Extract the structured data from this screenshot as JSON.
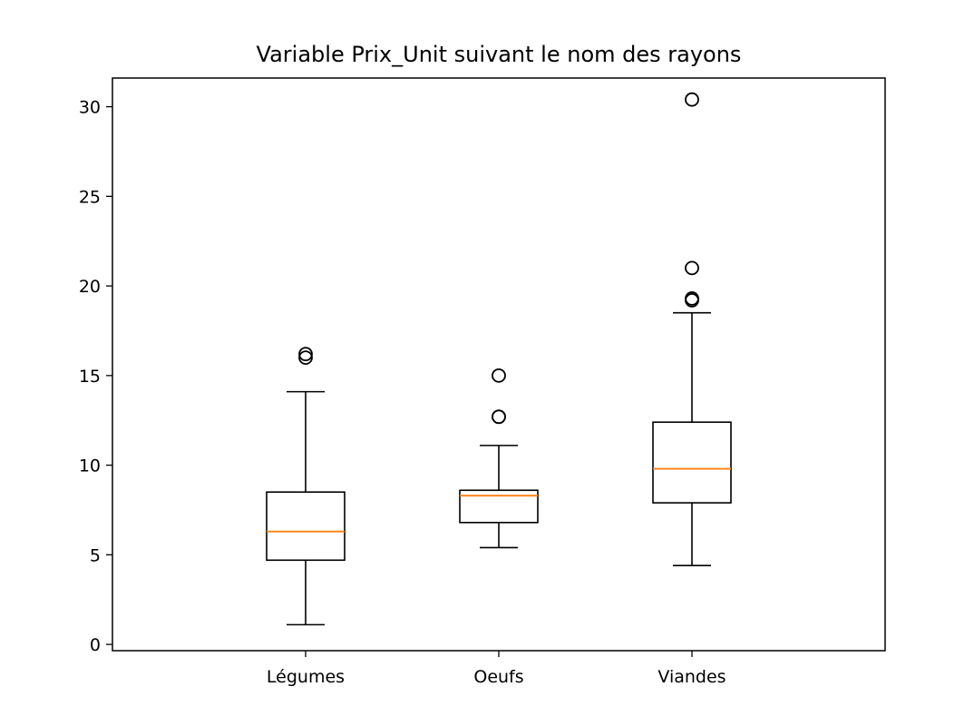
{
  "chart_data": {
    "type": "boxplot",
    "title": "Variable Prix_Unit suivant le nom des rayons",
    "xlabel": "",
    "ylabel": "",
    "categories": [
      "Légumes",
      "Oeufs",
      "Viandes"
    ],
    "boxes": [
      {
        "category": "Légumes",
        "whisker_low": 1.1,
        "q1": 4.7,
        "median": 6.3,
        "q3": 8.5,
        "whisker_high": 14.1,
        "outliers": [
          16.0,
          16.2
        ]
      },
      {
        "category": "Oeufs",
        "whisker_low": 5.4,
        "q1": 6.8,
        "median": 8.3,
        "q3": 8.6,
        "whisker_high": 11.1,
        "outliers": [
          12.7,
          12.7,
          15.0
        ]
      },
      {
        "category": "Viandes",
        "whisker_low": 4.4,
        "q1": 7.9,
        "median": 9.8,
        "q3": 12.4,
        "whisker_high": 18.5,
        "outliers": [
          19.2,
          19.3,
          21.0,
          30.4
        ]
      }
    ],
    "yticks": [
      0,
      5,
      10,
      15,
      20,
      25,
      30
    ],
    "ylim": [
      -0.35,
      31.6
    ],
    "grid": false,
    "legend": "none",
    "colors": {
      "box": "#000000",
      "median": "#ff7f0e",
      "outlier": "#000000"
    }
  }
}
